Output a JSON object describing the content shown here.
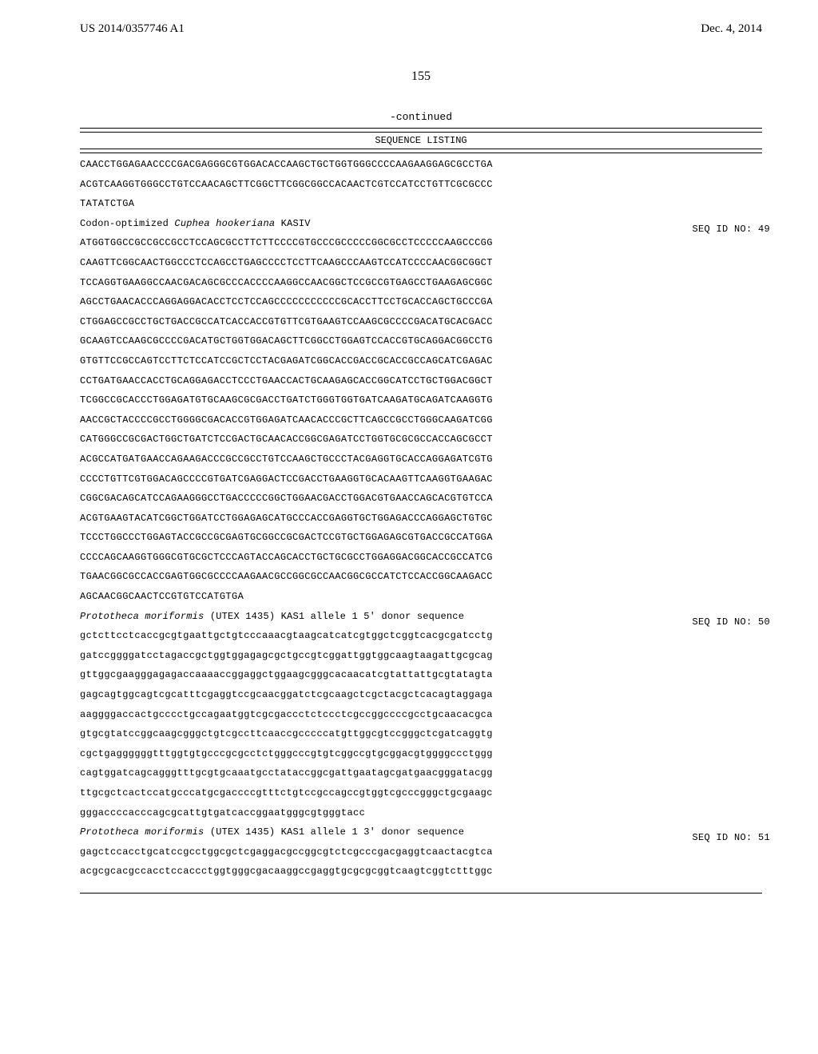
{
  "header": {
    "pub_num": "US 2014/0357746 A1",
    "pub_date": "Dec. 4, 2014"
  },
  "page_number": "155",
  "continued_label": "-continued",
  "seq_listing_heading": "SEQUENCE LISTING",
  "blocks": [
    {
      "type": "seq",
      "lines": [
        "CAACCTGGAGAACCCCGACGAGGGCGTGGACACCAAGCTGCTGGTGGGCCCCAAGAAGGAGCGCCTGA",
        "ACGTCAAGGTGGGCCTGTCCAACAGCTTCGGCTTCGGCGGCCACAACTCGTCCATCCTGTTCGCGCCC",
        "TATATCTGA"
      ]
    },
    {
      "type": "label",
      "seqid": "SEQ ID NO: 49",
      "parts": [
        {
          "text": "Codon-optimized ",
          "italic": false
        },
        {
          "text": "Cuphea hookeriana",
          "italic": true
        },
        {
          "text": " KASIV",
          "italic": false
        }
      ]
    },
    {
      "type": "seq",
      "lines": [
        "ATGGTGGCCGCCGCCGCCTCCAGCGCCTTCTTCCCCGTGCCCGCCCCCGGCGCCTCCCCCAAGCCCGG",
        "CAAGTTCGGCAACTGGCCCTCCAGCCTGAGCCCCTCCTTCAAGCCCAAGTCCATCCCCAACGGCGGCT",
        "TCCAGGTGAAGGCCAACGACAGCGCCCACCCCAAGGCCAACGGCTCCGCCGTGAGCCTGAAGAGCGGC",
        "AGCCTGAACACCCAGGAGGACACCTCCTCCAGCCCCCCCCCCCGCACCTTCCTGCACCAGCTGCCCGA",
        "CTGGAGCCGCCTGCTGACCGCCATCACCACCGTGTTCGTGAAGTCCAAGCGCCCCGACATGCACGACC",
        "GCAAGTCCAAGCGCCCCGACATGCTGGTGGACAGCTTCGGCCTGGAGTCCACCGTGCAGGACGGCCTG",
        "GTGTTCCGCCAGTCCTTCTCCATCCGCTCCTACGAGATCGGCACCGACCGCACCGCCAGCATCGAGAC",
        "CCTGATGAACCACCTGCAGGAGACCTCCCTGAACCACTGCAAGAGCACCGGCATCCTGCTGGACGGCT",
        "TCGGCCGCACCCTGGAGATGTGCAAGCGCGACCTGATCTGGGTGGTGATCAAGATGCAGATCAAGGTG",
        "AACCGCTACCCCGCCTGGGGCGACACCGTGGAGATCAACACCCGCTTCAGCCGCCTGGGCAAGATCGG",
        "CATGGGCCGCGACTGGCTGATCTCCGACTGCAACACCGGCGAGATCCTGGTGCGCGCCACCAGCGCCT",
        "ACGCCATGATGAACCAGAAGACCCGCCGCCTGTCCAAGCTGCCCTACGAGGTGCACCAGGAGATCGTG",
        "CCCCTGTTCGTGGACAGCCCCGTGATCGAGGACTCCGACCTGAAGGTGCACAAGTTCAAGGTGAAGAC",
        "CGGCGACAGCATCCAGAAGGGCCTGACCCCCGGCTGGAACGACCTGGACGTGAACCAGCACGTGTCCA",
        "ACGTGAAGTACATCGGCTGGATCCTGGAGAGCATGCCCACCGAGGTGCTGGAGACCCAGGAGCTGTGC",
        "TCCCTGGCCCTGGAGTACCGCCGCGAGTGCGGCCGCGACTCCGTGCTGGAGAGCGTGACCGCCATGGA",
        "CCCCAGCAAGGTGGGCGTGCGCTCCCAGTACCAGCACCTGCTGCGCCTGGAGGACGGCACCGCCATCG",
        "TGAACGGCGCCACCGAGTGGCGCCCCAAGAACGCCGGCGCCAACGGCGCCATCTCCACCGGCAAGACC",
        "AGCAACGGCAACTCCGTGTCCATGTGA"
      ]
    },
    {
      "type": "label",
      "seqid": "SEQ ID NO: 50",
      "parts": [
        {
          "text": "Prototheca moriformis",
          "italic": true
        },
        {
          "text": " (UTEX 1435) KAS1 allele 1 5' donor sequence",
          "italic": false
        }
      ]
    },
    {
      "type": "seq",
      "lines": [
        "gctcttcctcaccgcgtgaattgctgtcccaaacgtaagcatcatcgtggctcggtcacgcgatcctg",
        "gatccggggatcctagaccgctggtggagagcgctgccgtcggattggtggcaagtaagattgcgcag",
        "gttggcgaagggagagaccaaaaccggaggctggaagcgggcacaacatcgtattattgcgtatagta",
        "gagcagtggcagtcgcatttcgaggtccgcaacggatctcgcaagctcgctacgctcacagtaggaga",
        "aaggggaccactgcccctgccagaatggtcgcgaccctctccctcgccggccccgcctgcaacacgca",
        "gtgcgtatccggcaagcgggctgtcgccttcaaccgcccccatgttggcgtccgggctcgatcaggtg",
        "cgctgaggggggtttggtgtgcccgcgcctctgggcccgtgtcggccgtgcggacgtggggccctggg",
        "cagtggatcagcagggtttgcgtgcaaatgcctataccggcgattgaatagcgatgaacgggatacgg",
        "ttgcgctcactccatgcccatgcgaccccgtttctgtccgccagccgtggtcgcccgggctgcgaagc",
        "gggaccccacccagcgcattgtgatcaccggaatgggcgtgggtacc"
      ]
    },
    {
      "type": "label",
      "seqid": "SEQ ID NO: 51",
      "parts": [
        {
          "text": "Prototheca moriformis",
          "italic": true
        },
        {
          "text": " (UTEX 1435) KAS1 allele 1 3' donor sequence",
          "italic": false
        }
      ]
    },
    {
      "type": "seq",
      "lines": [
        "gagctccacctgcatccgcctggcgctcgaggacgccggcgtctcgcccgacgaggtcaactacgtca",
        "acgcgcacgccacctccaccctggtgggcgacaaggccgaggtgcgcgcggtcaagtcggtctttggc"
      ]
    }
  ]
}
